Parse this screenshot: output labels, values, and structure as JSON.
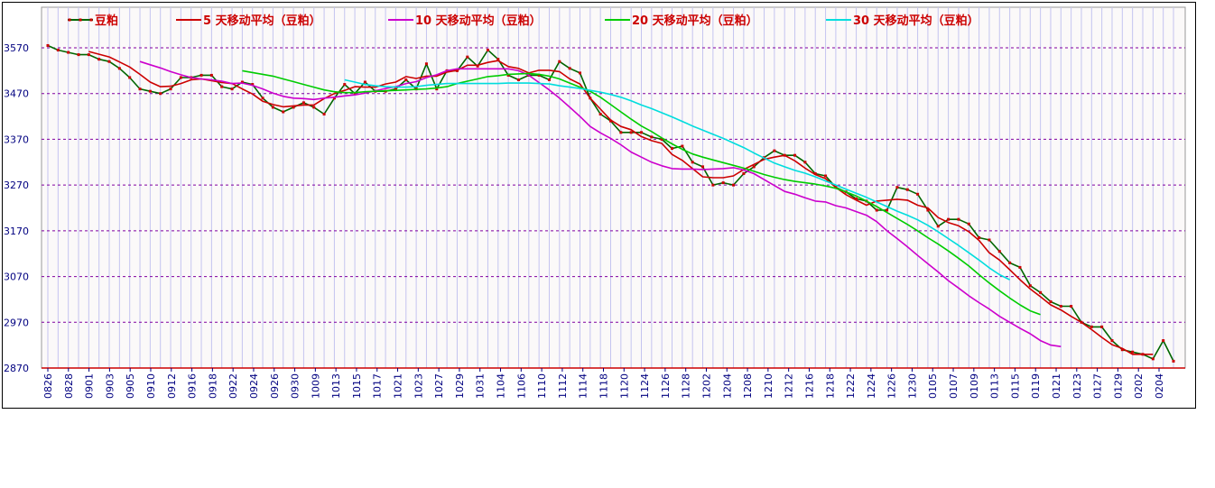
{
  "chart_data": {
    "type": "line",
    "title": "",
    "xlabel": "",
    "ylabel": "",
    "ylim": [
      2870,
      3570
    ],
    "yticks": [
      2870,
      2970,
      3070,
      3170,
      3270,
      3370,
      3470,
      3570
    ],
    "xtick_labels": [
      "0826",
      "0828",
      "0901",
      "0903",
      "0905",
      "0910",
      "0912",
      "0916",
      "0918",
      "0922",
      "0924",
      "0926",
      "0930",
      "1009",
      "1013",
      "1015",
      "1017",
      "1021",
      "1023",
      "1027",
      "1029",
      "1031",
      "1104",
      "1106",
      "1110",
      "1112",
      "1114",
      "1118",
      "1120",
      "1124",
      "1126",
      "1128",
      "1202",
      "1204",
      "1208",
      "1210",
      "1212",
      "1216",
      "1218",
      "1222",
      "1224",
      "1226",
      "1230",
      "0105",
      "0107",
      "0109",
      "0113",
      "0115",
      "0119",
      "0121",
      "0123",
      "0127",
      "0129",
      "0202",
      "0204"
    ],
    "grid": true,
    "legend_position": "top",
    "series": [
      {
        "name": "豆粕",
        "color": "#006600",
        "marker": true,
        "values": [
          3575,
          3565,
          3560,
          3555,
          3555,
          3545,
          3540,
          3525,
          3505,
          3480,
          3475,
          3470,
          3480,
          3505,
          3505,
          3510,
          3510,
          3485,
          3480,
          3495,
          3490,
          3460,
          3440,
          3430,
          3440,
          3450,
          3440,
          3425,
          3460,
          3490,
          3470,
          3495,
          3475,
          3475,
          3480,
          3500,
          3480,
          3535,
          3480,
          3520,
          3520,
          3550,
          3530,
          3565,
          3545,
          3510,
          3500,
          3510,
          3510,
          3500,
          3540,
          3525,
          3515,
          3460,
          3425,
          3410,
          3385,
          3385,
          3385,
          3375,
          3370,
          3350,
          3355,
          3320,
          3310,
          3270,
          3275,
          3270,
          3295,
          3310,
          3330,
          3345,
          3335,
          3335,
          3320,
          3295,
          3290,
          3265,
          3255,
          3240,
          3235,
          3215,
          3215,
          3265,
          3260,
          3250,
          3215,
          3180,
          3195,
          3195,
          3185,
          3155,
          3150,
          3125,
          3100,
          3090,
          3050,
          3035,
          3015,
          3005,
          3005,
          2970,
          2960,
          2960,
          2930,
          2910,
          2905,
          2900,
          2890,
          2930,
          2885
        ]
      },
      {
        "name": "5 天移动平均（豆粕）",
        "color": "#cc0000",
        "start": 4,
        "values": [
          3562,
          3556,
          3550,
          3539,
          3528,
          3512,
          3495,
          3485,
          3486,
          3492,
          3500,
          3502,
          3498,
          3494,
          3492,
          3480,
          3469,
          3453,
          3446,
          3441,
          3443,
          3445,
          3445,
          3459,
          3470,
          3477,
          3485,
          3484,
          3484,
          3491,
          3495,
          3507,
          3503,
          3508,
          3508,
          3517,
          3521,
          3532,
          3532,
          3538,
          3542,
          3529,
          3525,
          3515,
          3521,
          3521,
          3518,
          3502,
          3491,
          3460,
          3436,
          3412,
          3398,
          3391,
          3376,
          3367,
          3361,
          3337,
          3324,
          3306,
          3288,
          3286,
          3286,
          3290,
          3304,
          3315,
          3326,
          3331,
          3335,
          3323,
          3307,
          3293,
          3284,
          3265,
          3249,
          3237,
          3226,
          3235,
          3237,
          3239,
          3237,
          3226,
          3220,
          3199,
          3188,
          3181,
          3168,
          3149,
          3122,
          3106,
          3085,
          3063,
          3043,
          3026,
          3008,
          2997,
          2983,
          2970,
          2954,
          2937,
          2921,
          2913,
          2900,
          2900,
          2900
        ]
      },
      {
        "name": "10 天移动平均（豆粕）",
        "color": "#cc00cc",
        "start": 9,
        "values": [
          3540,
          3533,
          3526,
          3518,
          3511,
          3505,
          3502,
          3500,
          3497,
          3492,
          3493,
          3488,
          3480,
          3471,
          3464,
          3460,
          3459,
          3457,
          3460,
          3462,
          3465,
          3467,
          3471,
          3476,
          3481,
          3485,
          3492,
          3496,
          3505,
          3511,
          3520,
          3524,
          3524,
          3524,
          3524,
          3524,
          3524,
          3520,
          3510,
          3494,
          3478,
          3460,
          3440,
          3420,
          3398,
          3384,
          3372,
          3358,
          3342,
          3331,
          3320,
          3312,
          3306,
          3305,
          3305,
          3304,
          3305,
          3306,
          3308,
          3303,
          3295,
          3282,
          3269,
          3256,
          3250,
          3242,
          3235,
          3233,
          3225,
          3220,
          3212,
          3204,
          3190,
          3170,
          3153,
          3135,
          3116,
          3098,
          3080,
          3061,
          3045,
          3028,
          3013,
          2999,
          2983,
          2970,
          2957,
          2945,
          2930,
          2920,
          2917
        ]
      },
      {
        "name": "20 天移动平均（豆粕）",
        "color": "#00cc00",
        "start": 19,
        "values": [
          3520,
          3516,
          3512,
          3508,
          3502,
          3496,
          3490,
          3484,
          3478,
          3474,
          3472,
          3472,
          3474,
          3475,
          3476,
          3477,
          3478,
          3479,
          3480,
          3482,
          3485,
          3492,
          3497,
          3502,
          3507,
          3509,
          3512,
          3513,
          3514,
          3512,
          3508,
          3502,
          3493,
          3484,
          3475,
          3462,
          3446,
          3430,
          3414,
          3399,
          3387,
          3373,
          3360,
          3348,
          3338,
          3331,
          3325,
          3319,
          3313,
          3307,
          3300,
          3293,
          3287,
          3282,
          3278,
          3275,
          3272,
          3268,
          3263,
          3255,
          3246,
          3235,
          3223,
          3210,
          3197,
          3184,
          3170,
          3155,
          3141,
          3126,
          3110,
          3093,
          3074,
          3056,
          3039,
          3023,
          3008,
          2995,
          2987
        ]
      },
      {
        "name": "30 天移动平均（豆粕）",
        "color": "#00dddd",
        "start": 29,
        "values": [
          3500,
          3495,
          3490,
          3487,
          3485,
          3484,
          3484,
          3485,
          3488,
          3490,
          3492,
          3492,
          3492,
          3492,
          3492,
          3492,
          3493,
          3493,
          3493,
          3492,
          3491,
          3487,
          3484,
          3481,
          3477,
          3473,
          3468,
          3462,
          3454,
          3445,
          3437,
          3428,
          3419,
          3409,
          3399,
          3390,
          3381,
          3372,
          3362,
          3352,
          3340,
          3329,
          3318,
          3310,
          3302,
          3296,
          3288,
          3279,
          3270,
          3261,
          3252,
          3243,
          3233,
          3223,
          3213,
          3204,
          3194,
          3182,
          3168,
          3153,
          3138,
          3122,
          3106,
          3089,
          3074,
          3063
        ]
      }
    ]
  }
}
